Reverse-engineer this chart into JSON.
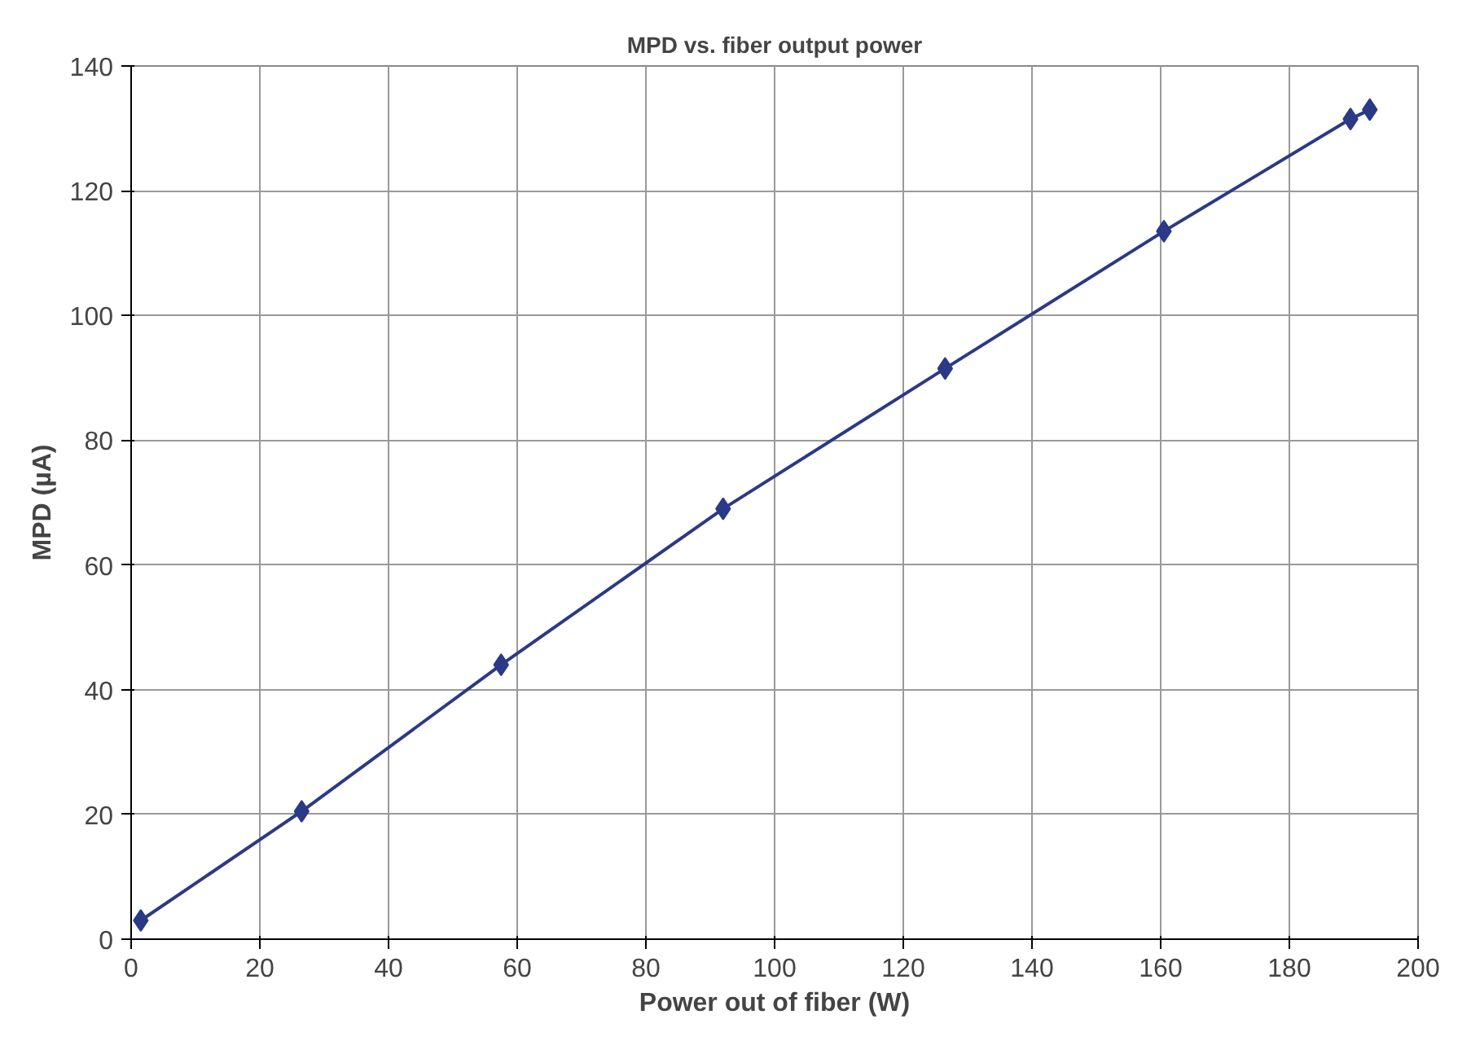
{
  "chart_data": {
    "type": "line",
    "title": "MPD vs. fiber output power",
    "xlabel": "Power out of fiber (W)",
    "ylabel": "MPD (µA)",
    "x": [
      1.5,
      26.5,
      57.5,
      92,
      126.5,
      160.5,
      189.5,
      192.5
    ],
    "series": [
      {
        "color": "#2b3a86",
        "values": [
          3,
          20.5,
          44,
          69,
          91.5,
          113.5,
          131.5,
          133
        ]
      }
    ],
    "xlim": [
      0,
      200
    ],
    "xticks": [
      0,
      20,
      40,
      60,
      80,
      100,
      120,
      140,
      160,
      180,
      200
    ],
    "ylim": [
      0,
      140
    ],
    "yticks": [
      0,
      20,
      40,
      60,
      80,
      100,
      120,
      140
    ],
    "grid": true,
    "marker": "diamond",
    "line_style": "solid"
  }
}
